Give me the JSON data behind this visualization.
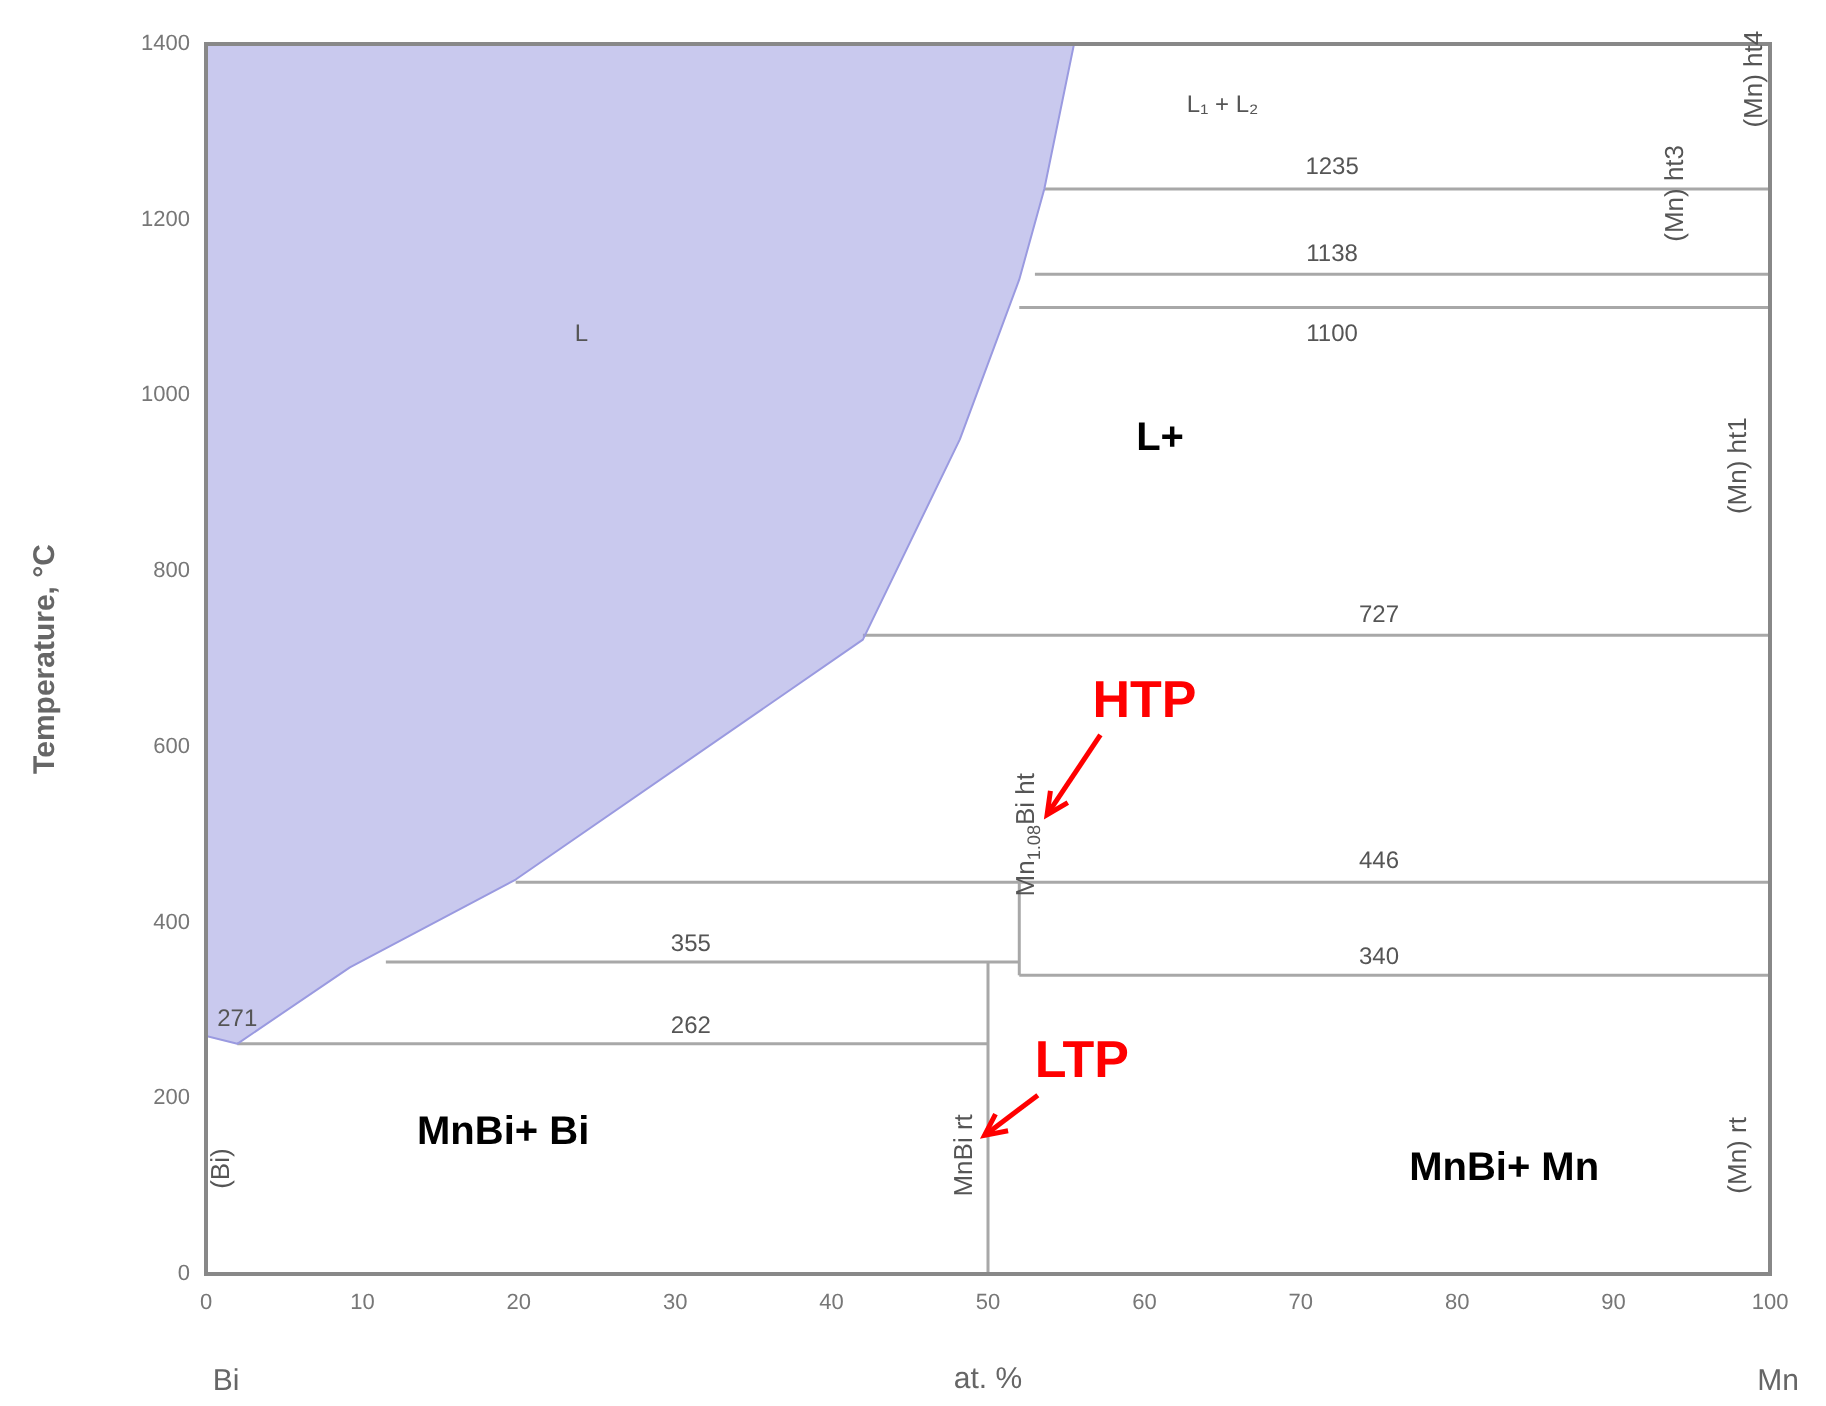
{
  "chart_data": {
    "type": "line",
    "xlabel": "at. %",
    "ylabel": "Temperature, °C",
    "xlim": [
      0,
      100
    ],
    "xticks": [
      0,
      10,
      20,
      30,
      40,
      50,
      60,
      70,
      80,
      90,
      100
    ],
    "ylim": [
      0,
      1400
    ],
    "yticks": [
      0,
      200,
      400,
      600,
      800,
      1000,
      1200,
      1400
    ],
    "grid": false,
    "legend": false,
    "marker": "none",
    "series": [
      {
        "type": "area",
        "color": "#9a9ae0",
        "x": [
          0,
          0,
          2,
          9.2,
          19.8,
          42,
          48.2,
          52,
          53.6,
          55.5
        ],
        "values": [
          1400,
          271,
          262,
          349,
          449,
          722,
          950,
          1132,
          1235,
          1400
        ]
      },
      {
        "color": "#a8a8a8",
        "x": [
          2,
          50
        ],
        "values": [
          262,
          262
        ]
      },
      {
        "color": "#a8a8a8",
        "x": [
          11.5,
          52
        ],
        "values": [
          355,
          355
        ]
      },
      {
        "color": "#a8a8a8",
        "x": [
          52,
          100
        ],
        "values": [
          340,
          340
        ]
      },
      {
        "color": "#a8a8a8",
        "x": [
          19.8,
          100
        ],
        "values": [
          446,
          446
        ]
      },
      {
        "color": "#a8a8a8",
        "x": [
          42,
          100
        ],
        "values": [
          727,
          727
        ]
      },
      {
        "color": "#a8a8a8",
        "x": [
          52,
          100
        ],
        "values": [
          1100,
          1100
        ]
      },
      {
        "color": "#a8a8a8",
        "x": [
          53,
          100
        ],
        "values": [
          1138,
          1138
        ]
      },
      {
        "color": "#a8a8a8",
        "x": [
          53.6,
          100
        ],
        "values": [
          1235,
          1235
        ]
      },
      {
        "color": "#a8a8a8",
        "x": [
          50,
          50
        ],
        "values": [
          0,
          355
        ]
      },
      {
        "color": "#a8a8a8",
        "x": [
          52,
          52
        ],
        "values": [
          340,
          446
        ]
      }
    ],
    "annotations": [
      "L",
      "L₁ + L₂",
      "1235",
      "1138",
      "1100",
      "L+",
      "727",
      "HTP",
      "446",
      "355",
      "340",
      "271",
      "262",
      "LTP",
      "MnBi+ Bi",
      "MnBi+ Mn",
      "(Bi)",
      "MnBi rt",
      "Mn$_{1.08}$Bi ht",
      "(Mn) rt",
      "(Mn) ht1",
      "(Mn) ht3",
      "(Mn) ht4",
      "Bi",
      "Mn"
    ]
  }
}
